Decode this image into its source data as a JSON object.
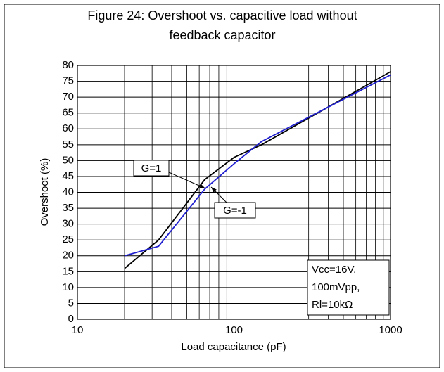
{
  "chart_data": {
    "type": "line",
    "title": [
      "Figure 24: Overshoot vs. capacitive load without",
      "feedback capacitor"
    ],
    "x_label": "Load capacitance (pF)",
    "y_label": "Overshoot (%)",
    "x": [
      20,
      33,
      65,
      100,
      150,
      1000
    ],
    "series": [
      {
        "name": "G=1",
        "color": "#000000",
        "values": [
          16,
          25,
          44,
          51,
          55,
          78
        ]
      },
      {
        "name": "G=-1",
        "color": "#1f1fd0",
        "values": [
          20,
          23,
          41,
          49,
          56,
          77
        ]
      }
    ],
    "xlim": [
      10,
      1000
    ],
    "xticks": [
      10,
      100,
      1000
    ],
    "xscale": "log",
    "ylim": [
      0,
      80
    ],
    "yticks": [
      0,
      5,
      10,
      15,
      20,
      25,
      30,
      35,
      40,
      45,
      50,
      55,
      60,
      65,
      70,
      75,
      80
    ],
    "grid": true,
    "note": [
      "Vcc=16V,",
      "100mVpp,",
      "Rl=10kΩ"
    ]
  }
}
